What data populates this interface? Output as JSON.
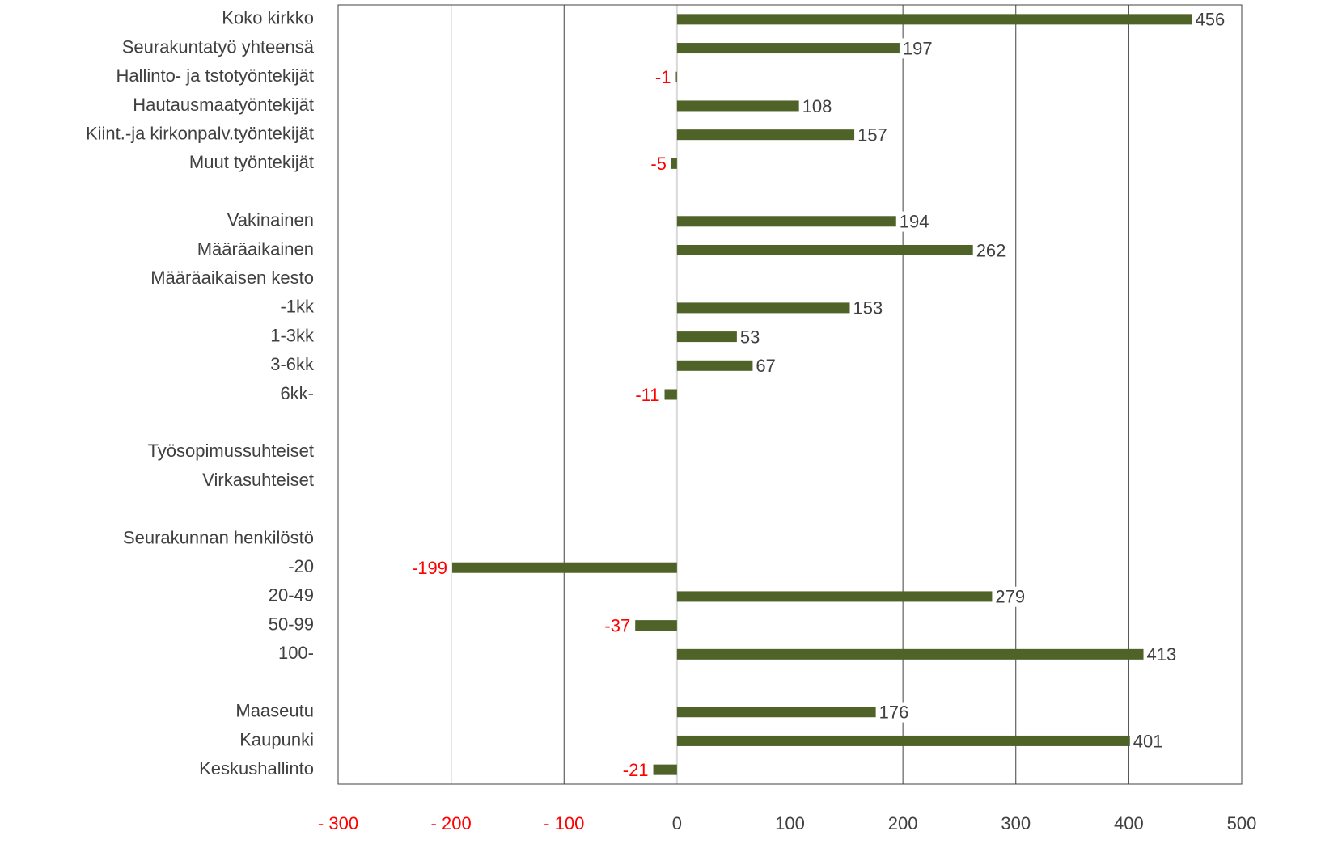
{
  "chart_data": {
    "type": "hbar",
    "categories": [
      "Koko kirkko",
      "Seurakuntatyö yhteensä",
      "Hallinto- ja tstotyöntekijät",
      "Hautausmaatyöntekijät",
      "Kiint.-ja kirkonpalv.työntekijät",
      "Muut työntekijät",
      null,
      "Vakinainen",
      "Määräaikainen",
      "Määräaikaisen kesto",
      "-1kk",
      "1-3kk",
      "3-6kk",
      "6kk-",
      null,
      "Työsopimussuhteiset",
      "Virkasuhteiset",
      null,
      "Seurakunnan henkilöstö",
      "-20",
      "20-49",
      "50-99",
      "100-",
      null,
      "Maaseutu",
      "Kaupunki",
      "Keskushallinto"
    ],
    "values": [
      456,
      197,
      -1,
      108,
      157,
      -5,
      null,
      194,
      262,
      null,
      153,
      53,
      67,
      -11,
      null,
      null,
      null,
      null,
      null,
      -199,
      279,
      -37,
      413,
      null,
      176,
      401,
      -21
    ],
    "color": "#4f6228",
    "negative_label_color": "#ff0000",
    "xlim": [
      -300,
      500
    ],
    "xticks": [
      {
        "value": -300,
        "label": "- 300"
      },
      {
        "value": -200,
        "label": "- 200"
      },
      {
        "value": -100,
        "label": "- 100"
      },
      0,
      100,
      200,
      300,
      400,
      500
    ],
    "grid": true
  }
}
